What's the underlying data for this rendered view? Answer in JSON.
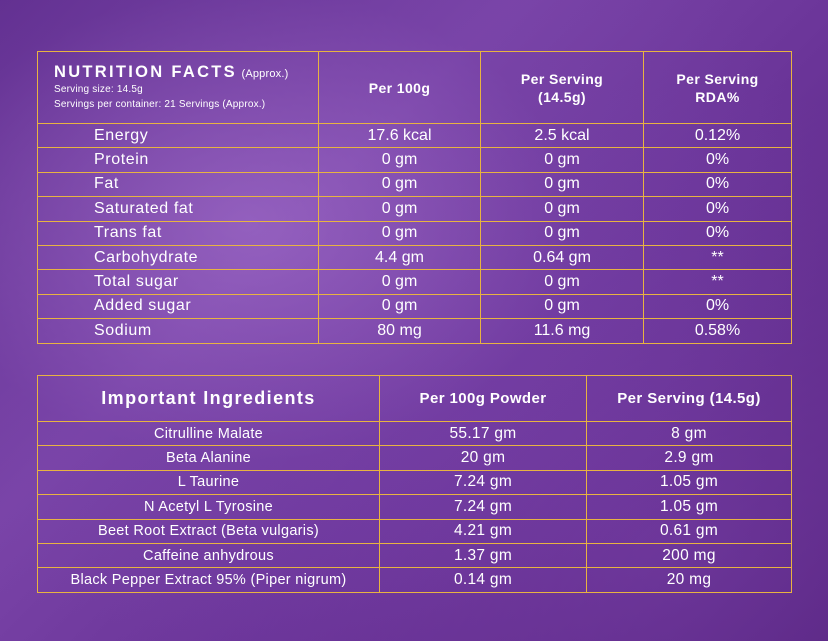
{
  "nutrition": {
    "title": "NUTRITION FACTS",
    "approx": "(Approx.)",
    "serving_size": "Serving size: 14.5g",
    "servings_per_container": "Servings per container: 21 Servings (Approx.)",
    "columns": [
      "Per 100g",
      "Per Serving",
      "(14.5g)",
      "Per Serving",
      "RDA%"
    ],
    "rows": [
      {
        "name": "Energy",
        "per100": "17.6 kcal",
        "serving": "2.5 kcal",
        "rda": "0.12%"
      },
      {
        "name": "Protein",
        "per100": "0 gm",
        "serving": "0 gm",
        "rda": "0%"
      },
      {
        "name": "Fat",
        "per100": "0 gm",
        "serving": "0 gm",
        "rda": "0%"
      },
      {
        "name": "Saturated fat",
        "per100": "0 gm",
        "serving": "0 gm",
        "rda": "0%"
      },
      {
        "name": "Trans fat",
        "per100": "0 gm",
        "serving": "0 gm",
        "rda": "0%"
      },
      {
        "name": "Carbohydrate",
        "per100": "4.4 gm",
        "serving": "0.64 gm",
        "rda": "**"
      },
      {
        "name": "Total sugar",
        "per100": "0 gm",
        "serving": "0 gm",
        "rda": "**"
      },
      {
        "name": "Added sugar",
        "per100": "0 gm",
        "serving": "0 gm",
        "rda": "0%"
      },
      {
        "name": "Sodium",
        "per100": "80 mg",
        "serving": "11.6 mg",
        "rda": "0.58%"
      }
    ]
  },
  "ingredients": {
    "title": "Important Ingredients",
    "col_per100": "Per 100g Powder",
    "col_serving": "Per Serving (14.5g)",
    "rows": [
      {
        "name": "Citrulline Malate",
        "per100": "55.17 gm",
        "serving": "8 gm"
      },
      {
        "name": "Beta Alanine",
        "per100": "20 gm",
        "serving": "2.9 gm"
      },
      {
        "name": "L Taurine",
        "per100": "7.24 gm",
        "serving": "1.05 gm"
      },
      {
        "name": "N Acetyl L Tyrosine",
        "per100": "7.24 gm",
        "serving": "1.05 gm"
      },
      {
        "name": "Beet Root Extract (Beta vulgaris)",
        "per100": "4.21 gm",
        "serving": "0.61 gm"
      },
      {
        "name": "Caffeine anhydrous",
        "per100": "1.37 gm",
        "serving": "200 mg"
      },
      {
        "name": "Black Pepper Extract 95% (Piper nigrum)",
        "per100": "0.14 gm",
        "serving": "20 mg"
      }
    ]
  },
  "colors": {
    "border": "#e8b341",
    "text": "#ffffff",
    "background": "#6a3498"
  }
}
